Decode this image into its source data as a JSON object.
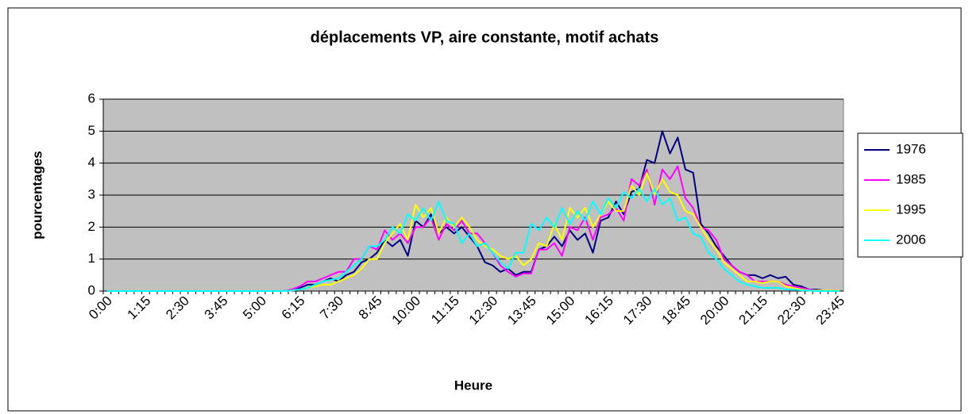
{
  "chart_data": {
    "type": "line",
    "title": "déplacements VP, aire constante, motif achats",
    "x_label": "Heure",
    "y_label": "pourcentages",
    "categories": [
      "0:00",
      null,
      null,
      null,
      null,
      "1:15",
      null,
      null,
      null,
      null,
      "2:30",
      null,
      null,
      null,
      null,
      "3:45",
      null,
      null,
      null,
      null,
      "5:00",
      null,
      null,
      null,
      null,
      "6:15",
      null,
      null,
      null,
      null,
      "7:30",
      null,
      null,
      null,
      null,
      "8:45",
      null,
      null,
      null,
      null,
      "10:00",
      null,
      null,
      null,
      null,
      "11:15",
      null,
      null,
      null,
      null,
      "12:30",
      null,
      null,
      null,
      null,
      "13:45",
      null,
      null,
      null,
      null,
      "15:00",
      null,
      null,
      null,
      null,
      "16:15",
      null,
      null,
      null,
      null,
      "17:30",
      null,
      null,
      null,
      null,
      "18:45",
      null,
      null,
      null,
      null,
      "20:00",
      null,
      null,
      null,
      null,
      "21:15",
      null,
      null,
      null,
      null,
      "22:30",
      null,
      null,
      null,
      null,
      "23:45"
    ],
    "series": [
      {
        "name": "1976",
        "color": "#000080",
        "values": [
          0,
          0,
          0,
          0,
          0,
          0,
          0,
          0,
          0,
          0,
          0,
          0,
          0,
          0,
          0,
          0,
          0,
          0,
          0,
          0,
          0,
          0,
          0,
          0,
          0.05,
          0.1,
          0.2,
          0.2,
          0.3,
          0.4,
          0.3,
          0.5,
          0.6,
          0.9,
          1.0,
          1.2,
          1.6,
          1.4,
          1.6,
          1.1,
          2.2,
          2.0,
          2.4,
          1.8,
          2.0,
          1.8,
          2.0,
          1.7,
          1.4,
          0.9,
          0.8,
          0.6,
          0.7,
          0.5,
          0.6,
          0.6,
          1.3,
          1.4,
          1.7,
          1.4,
          1.9,
          1.6,
          1.8,
          1.2,
          2.2,
          2.3,
          2.8,
          2.4,
          3.1,
          3.2,
          4.1,
          4.0,
          5.0,
          4.3,
          4.8,
          3.8,
          3.7,
          2.1,
          1.8,
          1.4,
          1.1,
          0.8,
          0.6,
          0.5,
          0.5,
          0.4,
          0.5,
          0.4,
          0.45,
          0.2,
          0.15,
          0.05,
          0.05,
          0.02,
          0,
          0.02
        ]
      },
      {
        "name": "1985",
        "color": "#ff00ff",
        "values": [
          0,
          0,
          0,
          0,
          0,
          0,
          0,
          0,
          0,
          0,
          0,
          0,
          0,
          0,
          0,
          0,
          0,
          0,
          0,
          0,
          0,
          0,
          0,
          0,
          0.05,
          0.15,
          0.3,
          0.3,
          0.4,
          0.5,
          0.6,
          0.6,
          1.0,
          1.0,
          1.4,
          1.3,
          1.9,
          1.6,
          1.8,
          1.5,
          2.0,
          2.0,
          2.3,
          1.6,
          2.1,
          1.9,
          2.2,
          1.8,
          1.8,
          1.5,
          1.2,
          0.8,
          0.6,
          0.45,
          0.55,
          0.55,
          1.3,
          1.3,
          1.5,
          1.1,
          2.0,
          1.9,
          2.3,
          1.6,
          2.3,
          2.4,
          2.6,
          2.2,
          3.5,
          3.3,
          3.8,
          2.7,
          3.8,
          3.5,
          3.9,
          2.9,
          2.6,
          2.0,
          1.9,
          1.6,
          1.0,
          0.8,
          0.6,
          0.5,
          0.3,
          0.3,
          0.3,
          0.3,
          0.2,
          0.15,
          0.1,
          0.05,
          0.02,
          0.02,
          0.02,
          0.02
        ]
      },
      {
        "name": "1995",
        "color": "#ffff00",
        "values": [
          0,
          0,
          0,
          0,
          0,
          0,
          0,
          0,
          0,
          0,
          0,
          0,
          0,
          0,
          0,
          0,
          0,
          0,
          0,
          0,
          0,
          0,
          0,
          0,
          0.02,
          0.05,
          0.1,
          0.15,
          0.2,
          0.2,
          0.3,
          0.4,
          0.5,
          0.7,
          1.0,
          1.0,
          1.5,
          1.8,
          2.1,
          1.6,
          2.7,
          2.3,
          2.6,
          1.8,
          2.3,
          2.0,
          2.3,
          2.0,
          1.6,
          1.4,
          1.3,
          1.1,
          1.0,
          1.1,
          0.8,
          1.0,
          1.5,
          1.4,
          2.1,
          1.6,
          2.6,
          2.3,
          2.6,
          2.0,
          2.4,
          2.8,
          2.5,
          2.5,
          3.3,
          3.0,
          3.7,
          3.0,
          3.5,
          3.1,
          3.0,
          2.5,
          2.4,
          2.0,
          1.6,
          1.3,
          0.9,
          0.7,
          0.5,
          0.3,
          0.3,
          0.25,
          0.3,
          0.3,
          0.15,
          0.1,
          0.05,
          0.02,
          0.02,
          0.02,
          0.02,
          0.02
        ]
      },
      {
        "name": "2006",
        "color": "#00ffff",
        "values": [
          0,
          0,
          0,
          0,
          0,
          0,
          0,
          0,
          0,
          0,
          0,
          0,
          0,
          0,
          0,
          0,
          0,
          0,
          0,
          0,
          0,
          0,
          0,
          0,
          0.02,
          0.05,
          0.1,
          0.2,
          0.3,
          0.35,
          0.4,
          0.6,
          0.8,
          1.0,
          1.4,
          1.4,
          1.6,
          2.0,
          1.8,
          2.4,
          2.2,
          2.6,
          2.2,
          2.8,
          2.2,
          2.1,
          1.5,
          1.8,
          1.4,
          1.5,
          1.2,
          0.9,
          0.7,
          1.2,
          1.2,
          2.1,
          1.9,
          2.3,
          2.0,
          2.6,
          2.1,
          2.5,
          2.2,
          2.8,
          2.4,
          2.9,
          2.6,
          3.1,
          2.9,
          3.2,
          2.8,
          3.2,
          2.7,
          2.9,
          2.2,
          2.3,
          1.8,
          1.7,
          1.2,
          1.0,
          0.7,
          0.5,
          0.3,
          0.2,
          0.15,
          0.1,
          0.1,
          0.1,
          0.05,
          0.05,
          0.02,
          0.02,
          0,
          0,
          0,
          0
        ]
      }
    ],
    "ylim": [
      0,
      6
    ],
    "yticks": [
      0,
      1,
      2,
      3,
      4,
      5,
      6
    ],
    "grid": true,
    "legend": "right"
  }
}
